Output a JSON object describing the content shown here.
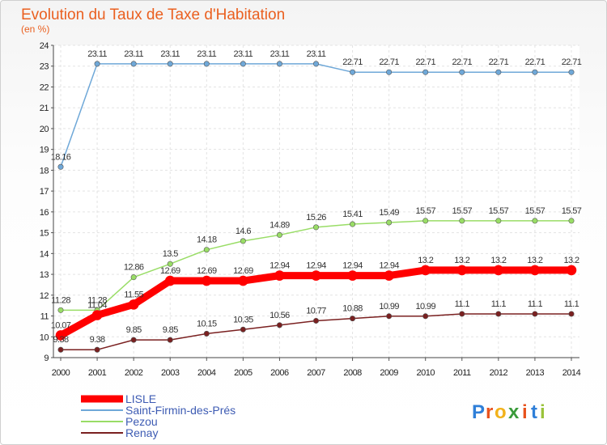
{
  "header": {
    "title": "Evolution du Taux de Taxe d'Habitation",
    "subtitle": "(en %)"
  },
  "logo": {
    "letters": [
      "P",
      "r",
      "o",
      "x",
      "i",
      "t",
      "i"
    ],
    "colors": [
      "#2f7fd8",
      "#e8521c",
      "#f2b21b",
      "#3a9b3a",
      "#e8521c",
      "#2f7fd8",
      "#9ac33a"
    ]
  },
  "chart_data": {
    "type": "line",
    "title": "Evolution du Taux de Taxe d'Habitation",
    "subtitle": "(en %)",
    "xlabel": "",
    "ylabel": "",
    "x": [
      "2000",
      "2001",
      "2002",
      "2003",
      "2004",
      "2005",
      "2006",
      "2007",
      "2008",
      "2009",
      "2010",
      "2011",
      "2012",
      "2013",
      "2014"
    ],
    "ylim": [
      9,
      24
    ],
    "yticks": [
      "9",
      "10",
      "11",
      "12",
      "13",
      "14",
      "15",
      "16",
      "17",
      "18",
      "19",
      "20",
      "21",
      "22",
      "23",
      "24"
    ],
    "grid": true,
    "legend_position": "bottom-left",
    "series": [
      {
        "name": "LISLE",
        "color": "#ff0000",
        "width": 9,
        "values": [
          10.07,
          11.04,
          11.55,
          12.69,
          12.69,
          12.69,
          12.94,
          12.94,
          12.94,
          12.94,
          13.2,
          13.2,
          13.2,
          13.2,
          13.2
        ],
        "labels": [
          "10.07",
          "11.04",
          "11.55",
          "12.69",
          "12.69",
          "12.69",
          "12.94",
          "12.94",
          "12.94",
          "12.94",
          "13.2",
          "13.2",
          "13.2",
          "13.2",
          "13.2"
        ]
      },
      {
        "name": "Saint-Firmin-des-Prés",
        "color": "#6fa8d8",
        "width": 1.5,
        "values": [
          18.16,
          23.11,
          23.11,
          23.11,
          23.11,
          23.11,
          23.11,
          23.11,
          22.71,
          22.71,
          22.71,
          22.71,
          22.71,
          22.71,
          22.71
        ],
        "labels": [
          "18.16",
          "23.11",
          "23.11",
          "23.11",
          "23.11",
          "23.11",
          "23.11",
          "23.11",
          "22.71",
          "22.71",
          "22.71",
          "22.71",
          "22.71",
          "22.71",
          "22.71"
        ]
      },
      {
        "name": "Pezou",
        "color": "#99dd66",
        "width": 1.5,
        "values": [
          11.28,
          11.28,
          12.86,
          13.5,
          14.18,
          14.6,
          14.89,
          15.26,
          15.41,
          15.49,
          15.57,
          15.57,
          15.57,
          15.57,
          15.57
        ],
        "labels": [
          "11.28",
          "11.28",
          "12.86",
          "13.5",
          "14.18",
          "14.6",
          "14.89",
          "15.26",
          "15.41",
          "15.49",
          "15.57",
          "15.57",
          "15.57",
          "15.57",
          "15.57"
        ]
      },
      {
        "name": "Renay",
        "color": "#7a2020",
        "width": 1.5,
        "values": [
          9.38,
          9.38,
          9.85,
          9.85,
          10.15,
          10.35,
          10.56,
          10.77,
          10.88,
          10.99,
          10.99,
          11.1,
          11.1,
          11.1,
          11.1
        ],
        "labels": [
          "9.38",
          "9.38",
          "9.85",
          "9.85",
          "10.15",
          "10.35",
          "10.56",
          "10.77",
          "10.88",
          "10.99",
          "10.99",
          "11.1",
          "11.1",
          "11.1",
          "11.1"
        ]
      }
    ]
  }
}
